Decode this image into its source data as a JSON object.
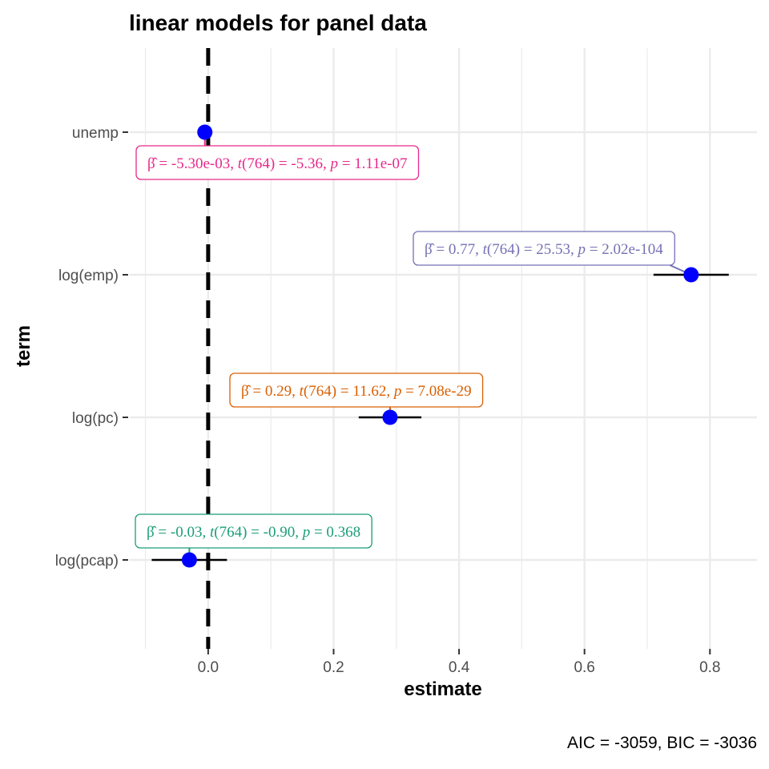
{
  "chart_data": {
    "type": "coefficient-plot",
    "title": "linear models for panel data",
    "xlabel": "estimate",
    "ylabel": "term",
    "caption": "AIC = -3059, BIC = -3036",
    "xlim": [
      -0.125,
      0.875
    ],
    "x_ticks": [
      0.0,
      0.2,
      0.4,
      0.6,
      0.8
    ],
    "x_tick_labels": [
      "0.0",
      "0.2",
      "0.4",
      "0.6",
      "0.8"
    ],
    "reference_line": 0,
    "grid": true,
    "point_color": "#0000ff",
    "terms": [
      {
        "term": "unemp",
        "estimate": -0.0053,
        "conf_low": -0.0072,
        "conf_high": -0.0034,
        "label_color": "#e7298a",
        "label": {
          "beta": "-5.30e-03",
          "df": "764",
          "t": "-5.36",
          "p": "1.11e-07"
        }
      },
      {
        "term": "log(emp)",
        "estimate": 0.77,
        "conf_low": 0.71,
        "conf_high": 0.83,
        "label_color": "#7570b3",
        "label": {
          "beta": "0.77",
          "df": "764",
          "t": "25.53",
          "p": "2.02e-104"
        }
      },
      {
        "term": "log(pc)",
        "estimate": 0.29,
        "conf_low": 0.24,
        "conf_high": 0.34,
        "label_color": "#d95f02",
        "label": {
          "beta": "0.29",
          "df": "764",
          "t": "11.62",
          "p": "7.08e-29"
        }
      },
      {
        "term": "log(pcap)",
        "estimate": -0.03,
        "conf_low": -0.09,
        "conf_high": 0.03,
        "label_color": "#1b9e77",
        "label": {
          "beta": "-0.03",
          "df": "764",
          "t": "-0.90",
          "p": "0.368"
        }
      }
    ]
  }
}
